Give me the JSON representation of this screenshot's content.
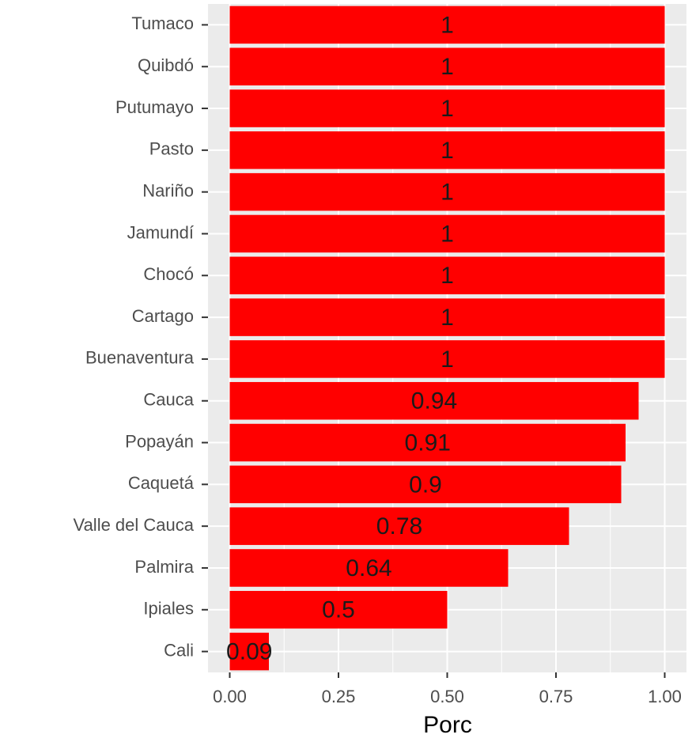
{
  "chart_data": {
    "type": "bar",
    "orientation": "horizontal",
    "categories": [
      "Tumaco",
      "Quibdó",
      "Putumayo",
      "Pasto",
      "Nariño",
      "Jamundí",
      "Chocó",
      "Cartago",
      "Buenaventura",
      "Cauca",
      "Popayán",
      "Caquetá",
      "Valle del Cauca",
      "Palmira",
      "Ipiales",
      "Cali"
    ],
    "values": [
      1,
      1,
      1,
      1,
      1,
      1,
      1,
      1,
      1,
      0.94,
      0.91,
      0.9,
      0.78,
      0.64,
      0.5,
      0.09
    ],
    "color": "#ff0000",
    "xlabel": "Porc",
    "xlim": [
      -0.05,
      1.05
    ],
    "xticks": [
      {
        "value": 0,
        "label": "0.00"
      },
      {
        "value": 0.25,
        "label": "0.25"
      },
      {
        "value": 0.5,
        "label": "0.50"
      },
      {
        "value": 0.75,
        "label": "0.75"
      },
      {
        "value": 1,
        "label": "1.00"
      }
    ],
    "grid": true
  }
}
